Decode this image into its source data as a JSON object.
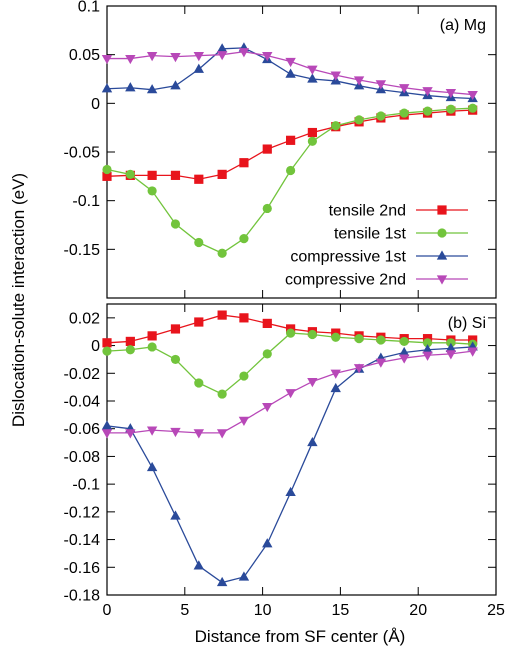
{
  "chart_data": {
    "type": "line",
    "ylabel": "Dislocation-solute interaction (eV)",
    "xlabel": "Distance from SF center (Å)",
    "xlim": [
      0,
      25
    ],
    "x_ticks": [
      "0",
      "5",
      "10",
      "15",
      "20",
      "25"
    ],
    "grid": false,
    "legend_position": "lower-right of top panel",
    "colors": {
      "tensile_2nd": "#e8141c",
      "tensile_1st": "#72c43c",
      "compressive_1st": "#2a4a9a",
      "compressive_2nd": "#b848b8"
    },
    "panels": [
      {
        "id": "mg",
        "label": "(a) Mg",
        "ylim": [
          -0.2,
          0.1
        ],
        "y_ticks": [
          "0.1",
          "0.05",
          "0",
          "-0.05",
          "-0.1",
          "-0.15"
        ],
        "y_tick_values": [
          0.1,
          0.05,
          0,
          -0.05,
          -0.1,
          -0.15
        ],
        "x": [
          0,
          1.5,
          2.9,
          4.4,
          5.9,
          7.4,
          8.8,
          10.3,
          11.8,
          13.2,
          14.7,
          16.2,
          17.6,
          19.1,
          20.6,
          22.1,
          23.5
        ],
        "series": [
          {
            "key": "tensile_2nd",
            "name": "tensile 2nd",
            "marker": "square",
            "values": [
              -0.075,
              -0.074,
              -0.074,
              -0.074,
              -0.078,
              -0.073,
              -0.061,
              -0.047,
              -0.038,
              -0.03,
              -0.024,
              -0.019,
              -0.015,
              -0.012,
              -0.01,
              -0.008,
              -0.007
            ]
          },
          {
            "key": "tensile_1st",
            "name": "tensile 1st",
            "marker": "circle",
            "values": [
              -0.068,
              -0.073,
              -0.09,
              -0.124,
              -0.143,
              -0.154,
              -0.139,
              -0.108,
              -0.069,
              -0.039,
              -0.023,
              -0.017,
              -0.013,
              -0.01,
              -0.008,
              -0.006,
              -0.005
            ]
          },
          {
            "key": "compressive_1st",
            "name": "compressive 1st",
            "marker": "triangle-up",
            "values": [
              0.015,
              0.016,
              0.014,
              0.018,
              0.035,
              0.056,
              0.057,
              0.045,
              0.03,
              0.025,
              0.023,
              0.018,
              0.014,
              0.011,
              0.008,
              0.006,
              0.005
            ]
          },
          {
            "key": "compressive_2nd",
            "name": "compressive 2nd",
            "marker": "triangle-down",
            "values": [
              0.046,
              0.046,
              0.049,
              0.048,
              0.049,
              0.05,
              0.053,
              0.049,
              0.043,
              0.035,
              0.029,
              0.024,
              0.02,
              0.016,
              0.013,
              0.011,
              0.009
            ]
          }
        ]
      },
      {
        "id": "si",
        "label": "(b) Si",
        "ylim": [
          -0.18,
          0.03
        ],
        "y_ticks": [
          "0.02",
          "0",
          "-0.02",
          "-0.04",
          "-0.06",
          "-0.08",
          "-0.1",
          "-0.12",
          "-0.14",
          "-0.16",
          "-0.18"
        ],
        "y_tick_values": [
          0.02,
          0,
          -0.02,
          -0.04,
          -0.06,
          -0.08,
          -0.1,
          -0.12,
          -0.14,
          -0.16,
          -0.18
        ],
        "x": [
          0,
          1.5,
          2.9,
          4.4,
          5.9,
          7.4,
          8.8,
          10.3,
          11.8,
          13.2,
          14.7,
          16.2,
          17.6,
          19.1,
          20.6,
          22.1,
          23.5
        ],
        "series": [
          {
            "key": "tensile_2nd",
            "name": "tensile 2nd",
            "marker": "square",
            "values": [
              0.002,
              0.003,
              0.007,
              0.012,
              0.017,
              0.022,
              0.02,
              0.016,
              0.012,
              0.01,
              0.009,
              0.007,
              0.006,
              0.005,
              0.005,
              0.004,
              0.004
            ]
          },
          {
            "key": "tensile_1st",
            "name": "tensile 1st",
            "marker": "circle",
            "values": [
              -0.004,
              -0.003,
              -0.001,
              -0.01,
              -0.027,
              -0.035,
              -0.022,
              -0.006,
              0.009,
              0.008,
              0.006,
              0.005,
              0.004,
              0.003,
              0.002,
              0.002,
              0.001
            ]
          },
          {
            "key": "compressive_1st",
            "name": "compressive 1st",
            "marker": "triangle-up",
            "values": [
              -0.058,
              -0.06,
              -0.088,
              -0.123,
              -0.159,
              -0.171,
              -0.167,
              -0.143,
              -0.106,
              -0.07,
              -0.031,
              -0.017,
              -0.009,
              -0.005,
              -0.003,
              -0.002,
              -0.001
            ]
          },
          {
            "key": "compressive_2nd",
            "name": "compressive 2nd",
            "marker": "triangle-down",
            "values": [
              -0.063,
              -0.063,
              -0.061,
              -0.062,
              -0.063,
              -0.063,
              -0.054,
              -0.044,
              -0.034,
              -0.026,
              -0.02,
              -0.016,
              -0.012,
              -0.009,
              -0.007,
              -0.006,
              -0.004
            ]
          }
        ]
      }
    ]
  }
}
